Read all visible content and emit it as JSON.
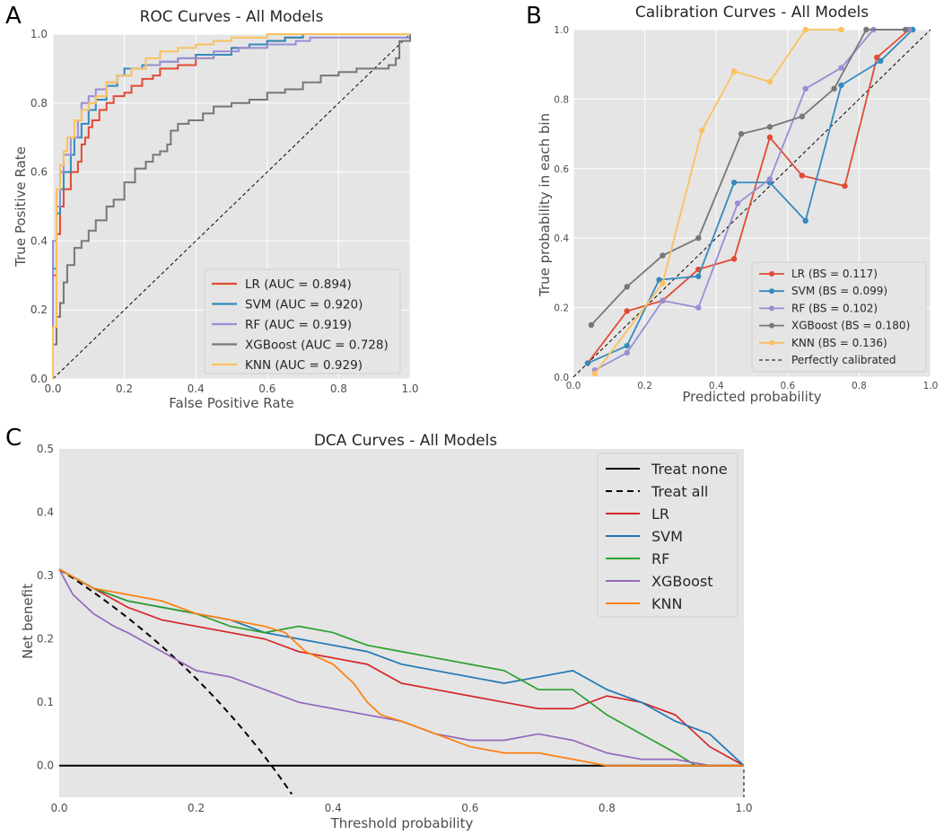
{
  "panels": {
    "A": "A",
    "B": "B",
    "C": "C"
  },
  "colors": {
    "LR": "#e24a33",
    "SVM": "#348abd",
    "RF": "#988ed5",
    "XGBoost": "#777777",
    "KNN": "#fbc15e",
    "dca_LR": "#d62728",
    "dca_SVM": "#1f77b4",
    "dca_RF": "#2ca02c",
    "dca_XGBoost": "#9467bd",
    "dca_KNN": "#ff7f0e"
  },
  "chart_data": [
    {
      "id": "roc",
      "type": "line",
      "title": "ROC Curves - All Models",
      "xlabel": "False Positive Rate",
      "ylabel": "True Positive Rate",
      "xlim": [
        0,
        1
      ],
      "ylim": [
        0,
        1
      ],
      "xticks": [
        "0.0",
        "0.2",
        "0.4",
        "0.6",
        "0.8",
        "1.0"
      ],
      "yticks": [
        "0.0",
        "0.2",
        "0.4",
        "0.6",
        "0.8",
        "1.0"
      ],
      "grid": true,
      "legend_position": "lower-right",
      "series": [
        {
          "name": "LR",
          "label": "LR (AUC = 0.894)",
          "x": [
            0,
            0,
            0.01,
            0.01,
            0.02,
            0.02,
            0.03,
            0.03,
            0.05,
            0.05,
            0.07,
            0.08,
            0.09,
            0.1,
            0.11,
            0.13,
            0.15,
            0.17,
            0.2,
            0.22,
            0.25,
            0.28,
            0.3,
            0.35,
            0.4,
            0.45,
            0.5,
            0.55,
            0.6,
            0.65,
            0.7,
            0.8,
            0.9,
            0.95,
            1
          ],
          "y": [
            0,
            0.3,
            0.3,
            0.42,
            0.42,
            0.5,
            0.5,
            0.55,
            0.58,
            0.6,
            0.63,
            0.68,
            0.7,
            0.73,
            0.75,
            0.78,
            0.8,
            0.82,
            0.83,
            0.85,
            0.87,
            0.88,
            0.9,
            0.91,
            0.93,
            0.94,
            0.96,
            0.97,
            0.98,
            0.99,
            1,
            1,
            1,
            1,
            1
          ]
        },
        {
          "name": "SVM",
          "label": "SVM (AUC = 0.920)",
          "x": [
            0,
            0,
            0.01,
            0.02,
            0.03,
            0.05,
            0.06,
            0.08,
            0.1,
            0.12,
            0.15,
            0.18,
            0.2,
            0.25,
            0.3,
            0.35,
            0.4,
            0.5,
            0.55,
            0.6,
            0.65,
            0.7,
            0.8,
            0.9,
            1
          ],
          "y": [
            0,
            0.32,
            0.48,
            0.55,
            0.6,
            0.65,
            0.7,
            0.74,
            0.78,
            0.81,
            0.85,
            0.88,
            0.9,
            0.91,
            0.92,
            0.93,
            0.94,
            0.96,
            0.97,
            0.98,
            0.99,
            1,
            1,
            1,
            1
          ]
        },
        {
          "name": "RF",
          "label": "RF (AUC = 0.919)",
          "x": [
            0,
            0,
            0.01,
            0.02,
            0.03,
            0.05,
            0.07,
            0.08,
            0.1,
            0.12,
            0.15,
            0.18,
            0.22,
            0.26,
            0.3,
            0.35,
            0.45,
            0.52,
            0.6,
            0.68,
            0.72,
            1
          ],
          "y": [
            0,
            0.4,
            0.5,
            0.6,
            0.65,
            0.7,
            0.75,
            0.8,
            0.82,
            0.84,
            0.86,
            0.88,
            0.9,
            0.91,
            0.92,
            0.93,
            0.95,
            0.96,
            0.97,
            0.98,
            0.99,
            1
          ]
        },
        {
          "name": "XGBoost",
          "label": "XGBoost (AUC = 0.728)",
          "x": [
            0,
            0,
            0.01,
            0.02,
            0.03,
            0.04,
            0.06,
            0.08,
            0.1,
            0.12,
            0.15,
            0.17,
            0.2,
            0.23,
            0.26,
            0.28,
            0.3,
            0.32,
            0.33,
            0.35,
            0.38,
            0.42,
            0.45,
            0.5,
            0.55,
            0.6,
            0.65,
            0.7,
            0.75,
            0.8,
            0.85,
            0.9,
            0.94,
            0.96,
            0.97,
            1
          ],
          "y": [
            0,
            0.1,
            0.18,
            0.22,
            0.28,
            0.33,
            0.38,
            0.4,
            0.43,
            0.46,
            0.5,
            0.52,
            0.57,
            0.61,
            0.63,
            0.65,
            0.66,
            0.68,
            0.72,
            0.74,
            0.75,
            0.77,
            0.79,
            0.8,
            0.81,
            0.83,
            0.84,
            0.86,
            0.88,
            0.89,
            0.9,
            0.9,
            0.91,
            0.93,
            0.98,
            1
          ]
        },
        {
          "name": "KNN",
          "label": "KNN (AUC = 0.929)",
          "x": [
            0,
            0,
            0.01,
            0.02,
            0.03,
            0.04,
            0.06,
            0.08,
            0.1,
            0.12,
            0.15,
            0.18,
            0.22,
            0.26,
            0.3,
            0.35,
            0.4,
            0.45,
            0.5,
            0.6,
            0.7,
            0.8,
            1
          ],
          "y": [
            0,
            0.15,
            0.55,
            0.62,
            0.66,
            0.7,
            0.75,
            0.78,
            0.8,
            0.82,
            0.86,
            0.88,
            0.9,
            0.93,
            0.95,
            0.96,
            0.97,
            0.98,
            0.99,
            1,
            1,
            1,
            1
          ]
        }
      ]
    },
    {
      "id": "calibration",
      "type": "line",
      "title": "Calibration Curves - All Models",
      "xlabel": "Predicted probability",
      "ylabel": "True probability in each bin",
      "xlim": [
        0,
        1
      ],
      "ylim": [
        0,
        1
      ],
      "xticks": [
        "0.0",
        "0.2",
        "0.4",
        "0.6",
        "0.8",
        "1.0"
      ],
      "yticks": [
        "0.0",
        "0.2",
        "0.4",
        "0.6",
        "0.8",
        "1.0"
      ],
      "grid": true,
      "legend_position": "lower-right",
      "reference_label": "Perfectly calibrated",
      "series": [
        {
          "name": "LR",
          "label": "LR (BS = 0.117)",
          "x": [
            0.04,
            0.15,
            0.25,
            0.35,
            0.45,
            0.55,
            0.64,
            0.76,
            0.85,
            0.94
          ],
          "y": [
            0.04,
            0.19,
            0.22,
            0.31,
            0.34,
            0.69,
            0.58,
            0.55,
            0.92,
            1.0
          ]
        },
        {
          "name": "SVM",
          "label": "SVM (BS = 0.099)",
          "x": [
            0.04,
            0.15,
            0.24,
            0.35,
            0.45,
            0.55,
            0.65,
            0.75,
            0.86,
            0.95
          ],
          "y": [
            0.04,
            0.09,
            0.28,
            0.29,
            0.56,
            0.56,
            0.45,
            0.84,
            0.91,
            1.0
          ]
        },
        {
          "name": "RF",
          "label": "RF (BS = 0.102)",
          "x": [
            0.06,
            0.15,
            0.25,
            0.35,
            0.46,
            0.55,
            0.65,
            0.75,
            0.84,
            0.94
          ],
          "y": [
            0.02,
            0.07,
            0.22,
            0.2,
            0.5,
            0.57,
            0.83,
            0.89,
            1.0,
            1.0
          ]
        },
        {
          "name": "XGBoost",
          "label": "XGBoost (BS = 0.180)",
          "x": [
            0.05,
            0.15,
            0.25,
            0.35,
            0.47,
            0.55,
            0.64,
            0.73,
            0.82,
            0.93
          ],
          "y": [
            0.15,
            0.26,
            0.35,
            0.4,
            0.7,
            0.72,
            0.75,
            0.83,
            1.0,
            1.0
          ]
        },
        {
          "name": "KNN",
          "label": "KNN (BS = 0.136)",
          "x": [
            0.06,
            0.25,
            0.36,
            0.45,
            0.55,
            0.65,
            0.75
          ],
          "y": [
            0.01,
            0.27,
            0.71,
            0.88,
            0.85,
            1.0,
            1.0
          ]
        }
      ]
    },
    {
      "id": "dca",
      "type": "line",
      "title": "DCA Curves - All Models",
      "xlabel": "Threshold probability",
      "ylabel": "Net benefit",
      "xlim": [
        0,
        1
      ],
      "ylim": [
        -0.05,
        0.5
      ],
      "xticks": [
        "0.0",
        "0.2",
        "0.4",
        "0.6",
        "0.8",
        "1.0"
      ],
      "yticks": [
        "0.0",
        "0.1",
        "0.2",
        "0.3",
        "0.4",
        "0.5"
      ],
      "grid": false,
      "legend_position": "upper-right",
      "reference_lines": [
        {
          "name": "Treat none",
          "style": "solid",
          "value": 0
        },
        {
          "name": "Treat all",
          "style": "dashed",
          "prevalence": 0.31
        }
      ],
      "series": [
        {
          "name": "LR",
          "x": [
            0,
            0.05,
            0.1,
            0.15,
            0.2,
            0.25,
            0.3,
            0.35,
            0.4,
            0.45,
            0.5,
            0.55,
            0.6,
            0.65,
            0.7,
            0.75,
            0.8,
            0.85,
            0.9,
            0.95,
            1
          ],
          "y": [
            0.31,
            0.28,
            0.25,
            0.23,
            0.22,
            0.21,
            0.2,
            0.18,
            0.17,
            0.16,
            0.13,
            0.12,
            0.11,
            0.1,
            0.09,
            0.09,
            0.11,
            0.1,
            0.08,
            0.03,
            0
          ]
        },
        {
          "name": "SVM",
          "x": [
            0,
            0.05,
            0.1,
            0.15,
            0.2,
            0.25,
            0.3,
            0.35,
            0.4,
            0.45,
            0.5,
            0.55,
            0.6,
            0.65,
            0.7,
            0.75,
            0.8,
            0.85,
            0.9,
            0.95,
            1
          ],
          "y": [
            0.31,
            0.28,
            0.26,
            0.25,
            0.24,
            0.23,
            0.21,
            0.2,
            0.19,
            0.18,
            0.16,
            0.15,
            0.14,
            0.13,
            0.14,
            0.15,
            0.12,
            0.1,
            0.07,
            0.05,
            0
          ]
        },
        {
          "name": "RF",
          "x": [
            0,
            0.05,
            0.1,
            0.15,
            0.2,
            0.25,
            0.3,
            0.35,
            0.4,
            0.45,
            0.5,
            0.55,
            0.6,
            0.65,
            0.7,
            0.75,
            0.8,
            0.85,
            0.9,
            0.93,
            1
          ],
          "y": [
            0.31,
            0.28,
            0.26,
            0.25,
            0.24,
            0.22,
            0.21,
            0.22,
            0.21,
            0.19,
            0.18,
            0.17,
            0.16,
            0.15,
            0.12,
            0.12,
            0.08,
            0.05,
            0.02,
            0,
            0
          ]
        },
        {
          "name": "XGBoost",
          "x": [
            0,
            0.02,
            0.05,
            0.08,
            0.1,
            0.15,
            0.2,
            0.25,
            0.3,
            0.35,
            0.4,
            0.45,
            0.5,
            0.55,
            0.6,
            0.65,
            0.7,
            0.75,
            0.8,
            0.85,
            0.9,
            0.95,
            1
          ],
          "y": [
            0.31,
            0.27,
            0.24,
            0.22,
            0.21,
            0.18,
            0.15,
            0.14,
            0.12,
            0.1,
            0.09,
            0.08,
            0.07,
            0.05,
            0.04,
            0.04,
            0.05,
            0.04,
            0.02,
            0.01,
            0.01,
            0,
            0
          ]
        },
        {
          "name": "KNN",
          "x": [
            0,
            0.05,
            0.1,
            0.15,
            0.2,
            0.25,
            0.3,
            0.33,
            0.36,
            0.4,
            0.43,
            0.45,
            0.47,
            0.5,
            0.55,
            0.6,
            0.65,
            0.7,
            0.75,
            0.8,
            1
          ],
          "y": [
            0.31,
            0.28,
            0.27,
            0.26,
            0.24,
            0.23,
            0.22,
            0.21,
            0.18,
            0.16,
            0.13,
            0.1,
            0.08,
            0.07,
            0.05,
            0.03,
            0.02,
            0.02,
            0.01,
            0,
            0
          ]
        }
      ]
    }
  ]
}
